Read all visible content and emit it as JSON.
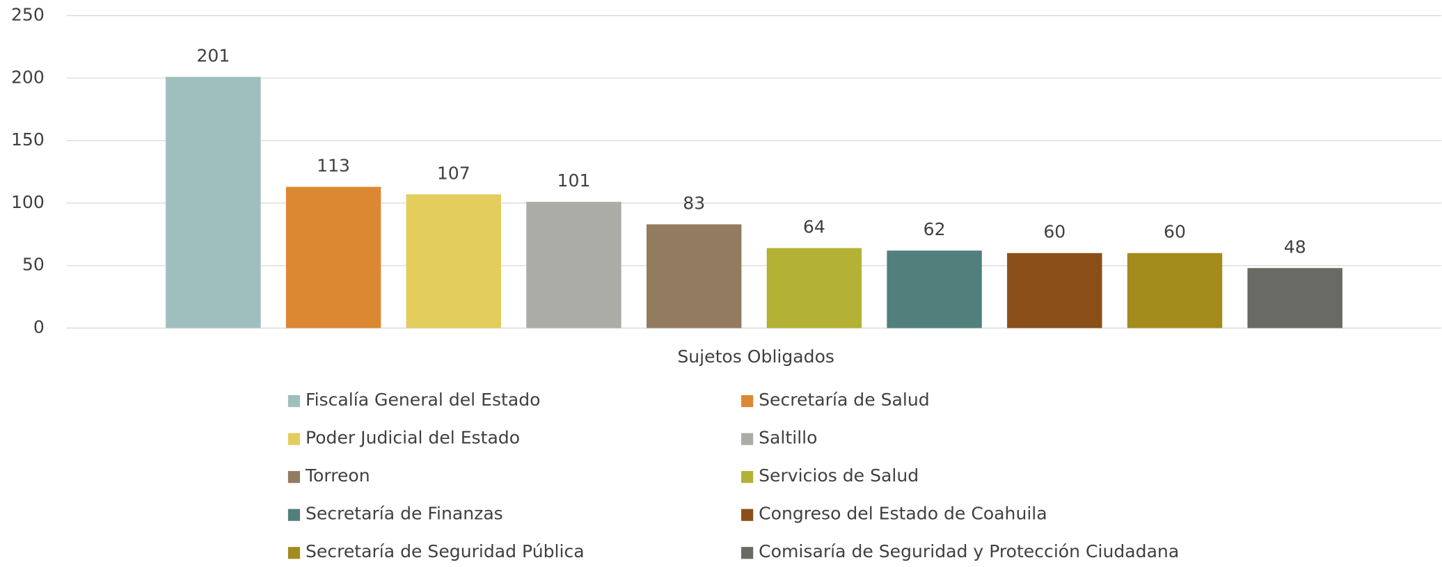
{
  "chart_data": {
    "type": "bar",
    "categories": [
      "Sujetos Obligados"
    ],
    "series": [
      {
        "name": "Fiscalía General del Estado",
        "color": "#9fbfbf",
        "values": [
          201
        ]
      },
      {
        "name": "Secretaría de Salud",
        "color": "#dc8833",
        "values": [
          113
        ]
      },
      {
        "name": "Poder Judicial del Estado",
        "color": "#e3cd5d",
        "values": [
          107
        ]
      },
      {
        "name": "Saltillo",
        "color": "#acaca6",
        "values": [
          101
        ]
      },
      {
        "name": "Torreon",
        "color": "#937b60",
        "values": [
          83
        ]
      },
      {
        "name": "Servicios de Salud",
        "color": "#b4b235",
        "values": [
          64
        ]
      },
      {
        "name": "Secretaría de Finanzas",
        "color": "#517f7c",
        "values": [
          62
        ]
      },
      {
        "name": "Congreso del Estado de Coahuila",
        "color": "#8a4f18",
        "values": [
          60
        ]
      },
      {
        "name": "Secretaría de Seguridad Pública",
        "color": "#a38b1c",
        "values": [
          60
        ]
      },
      {
        "name": "Comisaría de Seguridad y Protección Ciudadana",
        "color": "#696a63",
        "values": [
          48
        ]
      }
    ],
    "ylim": [
      0,
      250
    ],
    "yticks": [
      0,
      50,
      100,
      150,
      200,
      250
    ],
    "grid": true,
    "legend": "bottom"
  }
}
